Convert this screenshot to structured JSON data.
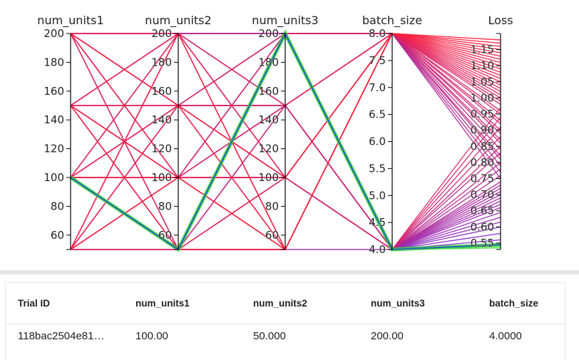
{
  "chart_data": {
    "type": "parallel_coordinates",
    "axes": [
      {
        "name": "num_units1",
        "range": [
          50,
          200
        ],
        "ticks": [
          60,
          80,
          100,
          120,
          140,
          160,
          180,
          200
        ],
        "tick_labels": [
          "60",
          "80",
          "100",
          "120",
          "140",
          "160",
          "180",
          "200"
        ]
      },
      {
        "name": "num_units2",
        "range": [
          50,
          200
        ],
        "ticks": [
          60,
          80,
          100,
          120,
          140,
          160,
          180,
          200
        ],
        "tick_labels": [
          "60",
          "80",
          "100",
          "120",
          "140",
          "160",
          "180",
          "200"
        ]
      },
      {
        "name": "num_units3",
        "range": [
          50,
          200
        ],
        "ticks": [
          60,
          80,
          100,
          120,
          140,
          160,
          180,
          200
        ],
        "tick_labels": [
          "60",
          "80",
          "100",
          "120",
          "140",
          "160",
          "180",
          "200"
        ]
      },
      {
        "name": "batch_size",
        "range": [
          4.0,
          8.0
        ],
        "ticks": [
          4.0,
          4.5,
          5.0,
          5.5,
          6.0,
          6.5,
          7.0,
          7.5,
          8.0
        ],
        "tick_labels": [
          "4.0",
          "4.5",
          "5.0",
          "5.5",
          "6.0",
          "6.5",
          "7.0",
          "7.5",
          "8.0"
        ]
      },
      {
        "name": "Loss",
        "range": [
          0.53,
          1.2
        ],
        "ticks": [
          0.55,
          0.6,
          0.65,
          0.7,
          0.75,
          0.8,
          0.85,
          0.9,
          0.95,
          1.0,
          1.05,
          1.1,
          1.15
        ],
        "tick_labels": [
          "0.55",
          "0.60",
          "0.65",
          "0.70",
          "0.75",
          "0.80",
          "0.85",
          "0.90",
          "0.95",
          "1.00",
          "1.05",
          "1.10",
          "1.15"
        ]
      }
    ],
    "trials": [
      [
        100,
        50,
        200,
        4,
        0.535
      ],
      [
        100,
        50,
        200,
        4,
        0.54
      ],
      [
        100,
        50,
        200,
        4,
        0.545
      ],
      [
        200,
        200,
        200,
        4,
        0.56
      ],
      [
        200,
        150,
        100,
        4,
        0.58
      ],
      [
        150,
        200,
        150,
        4,
        0.6
      ],
      [
        50,
        150,
        200,
        4,
        0.615
      ],
      [
        200,
        100,
        150,
        4,
        0.63
      ],
      [
        150,
        50,
        200,
        4,
        0.645
      ],
      [
        50,
        200,
        100,
        4,
        0.66
      ],
      [
        100,
        150,
        150,
        4,
        0.67
      ],
      [
        200,
        50,
        50,
        4,
        0.68
      ],
      [
        150,
        100,
        200,
        4,
        0.69
      ],
      [
        50,
        100,
        150,
        4,
        0.7
      ],
      [
        200,
        150,
        150,
        4,
        0.71
      ],
      [
        100,
        200,
        200,
        4,
        0.72
      ],
      [
        150,
        150,
        100,
        4,
        0.73
      ],
      [
        50,
        50,
        150,
        4,
        0.74
      ],
      [
        200,
        200,
        100,
        8,
        0.75
      ],
      [
        100,
        100,
        100,
        4,
        0.76
      ],
      [
        150,
        200,
        200,
        8,
        0.77
      ],
      [
        50,
        150,
        150,
        4,
        0.78
      ],
      [
        200,
        100,
        200,
        8,
        0.79
      ],
      [
        100,
        150,
        100,
        4,
        0.8
      ],
      [
        150,
        50,
        150,
        8,
        0.81
      ],
      [
        50,
        200,
        200,
        8,
        0.82
      ],
      [
        200,
        150,
        200,
        4,
        0.83
      ],
      [
        100,
        50,
        100,
        8,
        0.84
      ],
      [
        150,
        100,
        150,
        4,
        0.85
      ],
      [
        50,
        100,
        200,
        8,
        0.86
      ],
      [
        200,
        50,
        150,
        8,
        0.87
      ],
      [
        100,
        200,
        150,
        4,
        0.88
      ],
      [
        150,
        150,
        200,
        8,
        0.89
      ],
      [
        50,
        50,
        50,
        8,
        0.9
      ],
      [
        200,
        200,
        150,
        4,
        0.91
      ],
      [
        100,
        100,
        200,
        8,
        0.92
      ],
      [
        150,
        200,
        100,
        8,
        0.93
      ],
      [
        50,
        150,
        100,
        4,
        0.94
      ],
      [
        200,
        100,
        100,
        8,
        0.95
      ],
      [
        100,
        150,
        200,
        8,
        0.96
      ],
      [
        150,
        50,
        100,
        4,
        0.97
      ],
      [
        50,
        200,
        150,
        8,
        0.98
      ],
      [
        200,
        150,
        50,
        8,
        0.99
      ],
      [
        100,
        100,
        150,
        8,
        1.0
      ],
      [
        150,
        100,
        100,
        8,
        1.01
      ],
      [
        50,
        50,
        100,
        8,
        1.02
      ],
      [
        200,
        50,
        100,
        8,
        1.03
      ],
      [
        100,
        200,
        100,
        8,
        1.04
      ],
      [
        150,
        150,
        150,
        8,
        1.05
      ],
      [
        50,
        100,
        100,
        8,
        1.06
      ],
      [
        200,
        200,
        50,
        8,
        1.07
      ],
      [
        100,
        150,
        50,
        8,
        1.08
      ],
      [
        150,
        200,
        50,
        8,
        1.09
      ],
      [
        50,
        150,
        50,
        8,
        1.1
      ],
      [
        200,
        100,
        50,
        8,
        1.11
      ],
      [
        100,
        50,
        50,
        8,
        1.12
      ],
      [
        150,
        100,
        50,
        8,
        1.13
      ],
      [
        50,
        200,
        50,
        8,
        1.14
      ],
      [
        150,
        50,
        50,
        8,
        1.15
      ],
      [
        100,
        100,
        50,
        8,
        1.16
      ],
      [
        50,
        100,
        50,
        8,
        1.17
      ],
      [
        200,
        150,
        100,
        8,
        1.18
      ]
    ],
    "highlighted_trial": [
      100,
      50,
      200,
      4,
      0.545
    ],
    "colors": {
      "low": "#7b2dd6",
      "high": "#ff1f3a",
      "best": "#33dd33",
      "highlight_inner": "#2f57c8",
      "axis": "#000000"
    }
  },
  "table": {
    "headers": [
      "Trial ID",
      "num_units1",
      "num_units2",
      "num_units3",
      "batch_size"
    ],
    "rows": [
      [
        "118bac2504e81…",
        "100.00",
        "50.000",
        "200.00",
        "4.0000"
      ]
    ]
  }
}
